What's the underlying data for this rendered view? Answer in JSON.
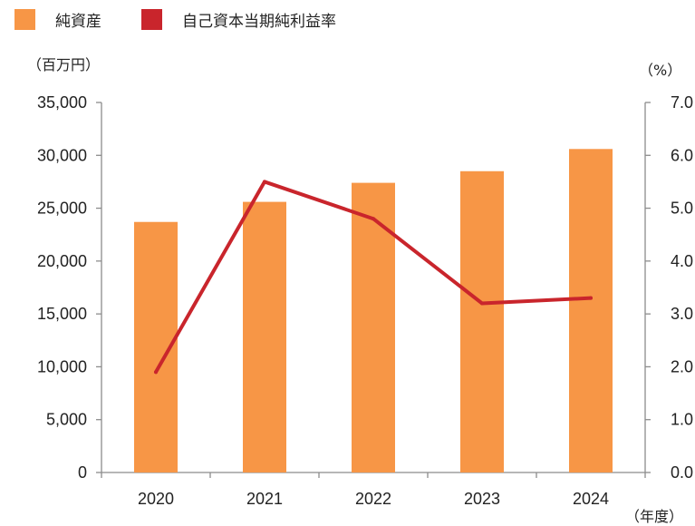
{
  "legend": {
    "items": [
      {
        "label": "純資産",
        "color": "#F79646"
      },
      {
        "label": "自己資本当期純利益率",
        "color": "#C9252C"
      }
    ]
  },
  "units": {
    "left": "（百万円）",
    "right": "（%）",
    "x": "（年度）"
  },
  "chart_data": {
    "type": "bar",
    "categories": [
      "2020",
      "2021",
      "2022",
      "2023",
      "2024"
    ],
    "series": [
      {
        "name": "純資産",
        "type": "bar",
        "axis": "left",
        "color": "#F79646",
        "values": [
          23700,
          25600,
          27400,
          28500,
          30600
        ]
      },
      {
        "name": "自己資本当期純利益率",
        "type": "line",
        "axis": "right",
        "color": "#C9252C",
        "values": [
          1.9,
          5.5,
          4.8,
          3.2,
          3.3
        ]
      }
    ],
    "y_left": {
      "range": [
        0,
        35000
      ],
      "ticks": [
        "0",
        "5,000",
        "10,000",
        "15,000",
        "20,000",
        "25,000",
        "30,000",
        "35,000"
      ]
    },
    "y_right": {
      "range": [
        0,
        7
      ],
      "ticks": [
        "0.0",
        "1.0",
        "2.0",
        "3.0",
        "4.0",
        "5.0",
        "6.0",
        "7.0"
      ]
    },
    "grid": false,
    "legend_position": "top-left"
  }
}
